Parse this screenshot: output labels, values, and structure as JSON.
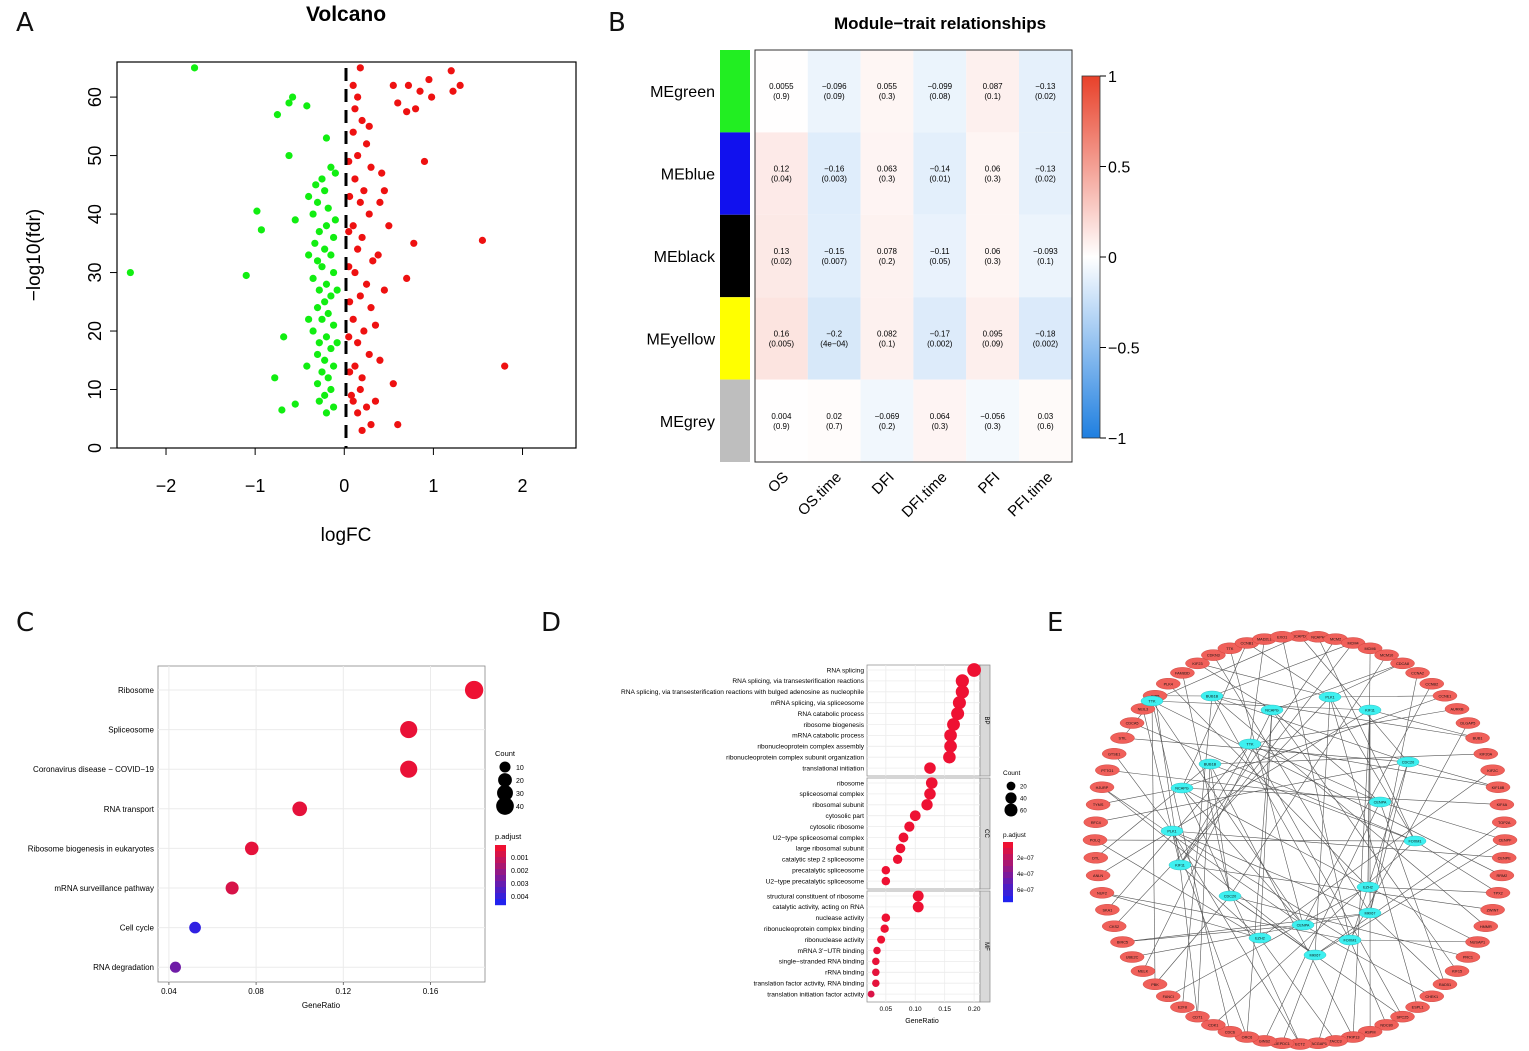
{
  "panels": {
    "a": "A",
    "b": "B",
    "c": "C",
    "d": "D",
    "e": "E"
  },
  "chart_data": [
    {
      "type": "scatter",
      "title": "Volcano",
      "xlabel": "logFC",
      "ylabel": "−log10(fdr)",
      "xlim": [
        -2.55,
        2.6
      ],
      "ylim": [
        0,
        66
      ],
      "xticks": [
        -2,
        -1,
        0,
        1,
        2
      ],
      "xtick_labels": [
        "−2",
        "−1",
        "0",
        "1",
        "2"
      ],
      "yticks": [
        0,
        10,
        20,
        30,
        40,
        50,
        60
      ],
      "ytick_labels": [
        "0",
        "10",
        "20",
        "30",
        "40",
        "50",
        "60"
      ],
      "threshold_x": 0,
      "series": [
        {
          "name": "down",
          "color": "#11ee11",
          "points": [
            [
              -1.68,
              65
            ],
            [
              -0.58,
              60
            ],
            [
              -0.62,
              59
            ],
            [
              -0.42,
              58.5
            ],
            [
              -0.75,
              57
            ],
            [
              -0.2,
              53
            ],
            [
              -0.62,
              50
            ],
            [
              -0.98,
              40.5
            ],
            [
              -0.93,
              37.3
            ],
            [
              -0.55,
              39
            ],
            [
              -2.4,
              30
            ],
            [
              -1.1,
              29.5
            ],
            [
              -0.68,
              19
            ],
            [
              -0.78,
              12
            ],
            [
              -0.55,
              7.5
            ],
            [
              -0.7,
              6.5
            ],
            [
              -0.25,
              46
            ],
            [
              -0.32,
              45
            ],
            [
              -0.22,
              44
            ],
            [
              -0.3,
              42
            ],
            [
              -0.18,
              41
            ],
            [
              -0.35,
              40
            ],
            [
              -0.2,
              38
            ],
            [
              -0.28,
              37
            ],
            [
              -0.12,
              36
            ],
            [
              -0.33,
              35
            ],
            [
              -0.22,
              34
            ],
            [
              -0.15,
              33
            ],
            [
              -0.3,
              32
            ],
            [
              -0.25,
              31
            ],
            [
              -0.12,
              30
            ],
            [
              -0.35,
              29
            ],
            [
              -0.2,
              28
            ],
            [
              -0.28,
              27
            ],
            [
              -0.15,
              26
            ],
            [
              -0.22,
              25
            ],
            [
              -0.3,
              24
            ],
            [
              -0.18,
              23
            ],
            [
              -0.25,
              22
            ],
            [
              -0.12,
              21
            ],
            [
              -0.35,
              20
            ],
            [
              -0.2,
              19
            ],
            [
              -0.28,
              18
            ],
            [
              -0.15,
              17
            ],
            [
              -0.3,
              16
            ],
            [
              -0.22,
              15
            ],
            [
              -0.12,
              14
            ],
            [
              -0.25,
              13
            ],
            [
              -0.18,
              12
            ],
            [
              -0.3,
              11
            ],
            [
              -0.15,
              10
            ],
            [
              -0.22,
              9
            ],
            [
              -0.28,
              8
            ],
            [
              -0.12,
              7
            ],
            [
              -0.2,
              6
            ],
            [
              -0.15,
              48
            ],
            [
              -0.1,
              47
            ],
            [
              -0.4,
              43
            ],
            [
              -0.1,
              39
            ],
            [
              -0.4,
              33
            ],
            [
              -0.08,
              27
            ],
            [
              -0.4,
              22
            ],
            [
              -0.08,
              18
            ],
            [
              -0.42,
              14
            ]
          ]
        },
        {
          "name": "up",
          "color": "#ee1111",
          "points": [
            [
              0.18,
              65
            ],
            [
              1.2,
              64.5
            ],
            [
              0.95,
              63
            ],
            [
              1.3,
              62
            ],
            [
              0.55,
              62
            ],
            [
              0.72,
              62
            ],
            [
              0.85,
              61
            ],
            [
              1.22,
              61
            ],
            [
              0.98,
              60
            ],
            [
              0.6,
              59
            ],
            [
              0.8,
              58
            ],
            [
              0.7,
              57.5
            ],
            [
              0.9,
              49
            ],
            [
              1.55,
              35.5
            ],
            [
              0.78,
              35
            ],
            [
              0.7,
              29
            ],
            [
              1.8,
              14
            ],
            [
              0.55,
              11
            ],
            [
              0.35,
              8
            ],
            [
              0.6,
              4
            ],
            [
              0.3,
              4
            ],
            [
              0.2,
              3
            ],
            [
              0.1,
              62
            ],
            [
              0.15,
              60
            ],
            [
              0.12,
              58
            ],
            [
              0.2,
              56
            ],
            [
              0.1,
              54
            ],
            [
              0.25,
              52
            ],
            [
              0.15,
              50
            ],
            [
              0.3,
              48
            ],
            [
              0.12,
              46
            ],
            [
              0.22,
              44
            ],
            [
              0.18,
              42
            ],
            [
              0.28,
              40
            ],
            [
              0.1,
              38
            ],
            [
              0.2,
              36
            ],
            [
              0.15,
              34
            ],
            [
              0.32,
              32
            ],
            [
              0.12,
              30
            ],
            [
              0.25,
              28
            ],
            [
              0.18,
              26
            ],
            [
              0.3,
              24
            ],
            [
              0.1,
              22
            ],
            [
              0.22,
              20
            ],
            [
              0.15,
              18
            ],
            [
              0.28,
              16
            ],
            [
              0.12,
              14
            ],
            [
              0.2,
              12
            ],
            [
              0.18,
              10
            ],
            [
              0.1,
              8
            ],
            [
              0.25,
              7
            ],
            [
              0.15,
              6
            ],
            [
              0.45,
              44
            ],
            [
              0.42,
              47
            ],
            [
              0.4,
              42
            ],
            [
              0.5,
              38
            ],
            [
              0.38,
              33
            ],
            [
              0.45,
              27
            ],
            [
              0.35,
              21
            ],
            [
              0.4,
              15
            ],
            [
              0.28,
              55
            ],
            [
              0.05,
              49
            ],
            [
              0.06,
              43
            ],
            [
              0.05,
              37
            ],
            [
              0.05,
              31
            ],
            [
              0.06,
              25
            ],
            [
              0.05,
              19
            ],
            [
              0.06,
              13
            ],
            [
              0.08,
              9
            ]
          ]
        }
      ]
    },
    {
      "type": "heatmap",
      "title": "Module−trait relationships",
      "rows": [
        "MEgreen",
        "MEblue",
        "MEblack",
        "MEyellow",
        "MEgrey"
      ],
      "row_colors": [
        "#22ee22",
        "#1111ee",
        "#000000",
        "#ffff00",
        "#bebebe"
      ],
      "columns": [
        "OS",
        "OS.time",
        "DFI",
        "DFI.time",
        "PFI",
        "PFI.time"
      ],
      "values": [
        [
          0.0055,
          -0.096,
          0.055,
          -0.099,
          0.087,
          -0.13
        ],
        [
          0.12,
          -0.16,
          0.063,
          -0.14,
          0.06,
          -0.13
        ],
        [
          0.13,
          -0.15,
          0.078,
          -0.11,
          0.06,
          -0.093
        ],
        [
          0.16,
          -0.2,
          0.082,
          -0.17,
          0.095,
          -0.18
        ],
        [
          0.004,
          0.02,
          -0.069,
          0.064,
          -0.056,
          0.03
        ]
      ],
      "cell_labels": [
        [
          "0.0055",
          "−0.096",
          "0.055",
          "−0.099",
          "0.087",
          "−0.13"
        ],
        [
          "0.12",
          "−0.16",
          "0.063",
          "−0.14",
          "0.06",
          "−0.13"
        ],
        [
          "0.13",
          "−0.15",
          "0.078",
          "−0.11",
          "0.06",
          "−0.093"
        ],
        [
          "0.16",
          "−0.2",
          "0.082",
          "−0.17",
          "0.095",
          "−0.18"
        ],
        [
          "0.004",
          "0.02",
          "−0.069",
          "0.064",
          "−0.056",
          "0.03"
        ]
      ],
      "pvalues": [
        [
          "(0.9)",
          "(0.09)",
          "(0.3)",
          "(0.08)",
          "(0.1)",
          "(0.02)"
        ],
        [
          "(0.04)",
          "(0.003)",
          "(0.3)",
          "(0.01)",
          "(0.3)",
          "(0.02)"
        ],
        [
          "(0.02)",
          "(0.007)",
          "(0.2)",
          "(0.05)",
          "(0.3)",
          "(0.1)"
        ],
        [
          "(0.005)",
          "(4e−04)",
          "(0.1)",
          "(0.002)",
          "(0.09)",
          "(0.002)"
        ],
        [
          "(0.9)",
          "(0.7)",
          "(0.2)",
          "(0.3)",
          "(0.3)",
          "(0.6)"
        ]
      ],
      "colorbar_range": [
        -1,
        1
      ],
      "colorbar_ticks": [
        1,
        0.5,
        0,
        -0.5,
        -1
      ],
      "colorbar_labels": [
        "1",
        "0.5",
        "0",
        "−0.5",
        "−1"
      ]
    },
    {
      "type": "scatter",
      "subtype": "dotplot",
      "xlabel": "GeneRatio",
      "xlim": [
        0.035,
        0.185
      ],
      "xticks": [
        0.04,
        0.08,
        0.12,
        0.16
      ],
      "xtick_labels": [
        "0.04",
        "0.08",
        "0.12",
        "0.16"
      ],
      "categories": [
        "Ribosome",
        "Spliceosome",
        "Coronavirus disease − COVID−19",
        "RNA transport",
        "Ribosome biogenesis in eukaryotes",
        "mRNA surveillance pathway",
        "Cell cycle",
        "RNA degradation"
      ],
      "gene_ratio": [
        0.18,
        0.15,
        0.15,
        0.1,
        0.078,
        0.069,
        0.052,
        0.043
      ],
      "count": [
        44,
        37,
        37,
        24,
        19,
        17,
        12,
        10
      ],
      "p_adjust": [
        0.0,
        0.0001,
        0.0001,
        0.0002,
        0.0002,
        0.0005,
        0.0042,
        0.0028
      ],
      "legend_count_title": "Count",
      "legend_count": [
        10,
        20,
        30,
        40
      ],
      "legend_count_labels": [
        "10",
        "20",
        "30",
        "40"
      ],
      "legend_p_title": "p.adjust",
      "legend_p_labels": [
        "0.001",
        "0.002",
        "0.003",
        "0.004"
      ],
      "p_range": [
        0,
        0.0045
      ]
    },
    {
      "type": "scatter",
      "subtype": "faceted-dotplot",
      "xlabel": "GeneRatio",
      "xlim": [
        0.018,
        0.21
      ],
      "xticks": [
        0.05,
        0.1,
        0.15,
        0.2
      ],
      "xtick_labels": [
        "0.05",
        "0.10",
        "0.15",
        "0.20"
      ],
      "facets": [
        {
          "name": "BP",
          "terms": [
            "RNA splicing",
            "RNA splicing, via transesterification reactions",
            "RNA splicing, via transesterification reactions with bulged adenosine as nucleophile",
            "mRNA splicing, via spliceosome",
            "RNA catabolic process",
            "ribosome biogenesis",
            "mRNA catabolic process",
            "ribonucleoprotein complex assembly",
            "ribonucleoprotein complex subunit organization",
            "translational initiation"
          ],
          "gene_ratio": [
            0.2,
            0.18,
            0.18,
            0.175,
            0.172,
            0.165,
            0.16,
            0.16,
            0.158,
            0.125
          ],
          "count": [
            68,
            62,
            62,
            60,
            59,
            57,
            55,
            55,
            54,
            43
          ],
          "p_adjust": [
            1e-12,
            1e-12,
            1e-12,
            1e-12,
            1e-12,
            1e-12,
            1e-12,
            1e-12,
            1e-12,
            1e-11
          ]
        },
        {
          "name": "CC",
          "terms": [
            "ribosome",
            "spliceosomal complex",
            "ribosomal subunit",
            "cytosolic part",
            "cytosolic ribosome",
            "U2−type spliceosomal complex",
            "large ribosomal subunit",
            "catalytic step 2 spliceosome",
            "precatalytic spliceosome",
            "U2−type precatalytic spliceosome"
          ],
          "gene_ratio": [
            0.128,
            0.125,
            0.12,
            0.1,
            0.09,
            0.08,
            0.075,
            0.07,
            0.05,
            0.05
          ],
          "count": [
            44,
            43,
            41,
            35,
            31,
            28,
            26,
            24,
            18,
            18
          ],
          "p_adjust": [
            1e-12,
            1e-12,
            1e-12,
            1e-12,
            1e-12,
            1e-12,
            1e-12,
            1e-12,
            1e-12,
            1e-12
          ]
        },
        {
          "name": "MF",
          "terms": [
            "structural constituent of ribosome",
            "catalytic activity, acting on RNA",
            "nuclease activity",
            "ribonucleoprotein complex binding",
            "ribonuclease activity",
            "mRNA 3’−UTR binding",
            "single−stranded RNA binding",
            "rRNA binding",
            "translation factor activity, RNA binding",
            "translation initiation factor activity"
          ],
          "gene_ratio": [
            0.105,
            0.105,
            0.05,
            0.048,
            0.042,
            0.035,
            0.033,
            0.033,
            0.033,
            0.025
          ],
          "count": [
            37,
            37,
            18,
            17,
            15,
            12,
            12,
            12,
            12,
            9
          ],
          "p_adjust": [
            1e-10,
            1e-10,
            1e-09,
            1e-09,
            1e-09,
            2e-08,
            2e-08,
            3e-08,
            3e-08,
            7e-08
          ]
        }
      ],
      "legend_count_title": "Count",
      "legend_count": [
        20,
        40,
        60
      ],
      "legend_count_labels": [
        "20",
        "40",
        "60"
      ],
      "legend_p_title": "p.adjust",
      "legend_p_labels": [
        "2e−07",
        "4e−07",
        "6e−07"
      ],
      "p_range": [
        0,
        7e-07
      ]
    },
    {
      "type": "network",
      "hub_genes": [
        "TTK",
        "BUB1B",
        "NCAPG",
        "PLK1",
        "KIF11",
        "CDC20",
        "CENPA",
        "FOXM1",
        "EZH2",
        "MKI67"
      ],
      "outer_genes": [
        "NCAPD2",
        "NCAPH",
        "MCM2",
        "MCM4",
        "MCM6",
        "MCM10",
        "CDCA8",
        "CCNA2",
        "CCNB2",
        "CCNE1",
        "AURKB",
        "DLGAP5",
        "BUB1",
        "KIF20A",
        "KIF2C",
        "KIF18B",
        "KIF4A",
        "TOP2A",
        "CENPF",
        "CENPE",
        "RRM2",
        "TPX2",
        "ZWINT",
        "HMMR",
        "NUSAP1",
        "PRC1",
        "KIF15",
        "RAD51",
        "CHEK1",
        "ESPL1",
        "SPC25",
        "NDC80",
        "ASPM",
        "TRIP13",
        "TACC3",
        "RACGAP1",
        "ECT2",
        "DEPDC1",
        "GINS2",
        "ORC6",
        "CDC6",
        "CDK1",
        "CDT1",
        "E2F8",
        "FANCI",
        "PBK",
        "MELK",
        "UBE2C",
        "BIRC5",
        "CKS2",
        "SKA1",
        "NUF2",
        "ANLN",
        "DTL",
        "POLQ",
        "RFC4",
        "TYMS",
        "HJURP",
        "PTTG1",
        "GTSE1",
        "STIL",
        "CDCA5",
        "NEIL3",
        "OIP5",
        "PLK4",
        "FAM83D",
        "KIF23",
        "CDKN3",
        "TTK",
        "CCNB1",
        "MAD2L1",
        "EXO1"
      ]
    }
  ]
}
